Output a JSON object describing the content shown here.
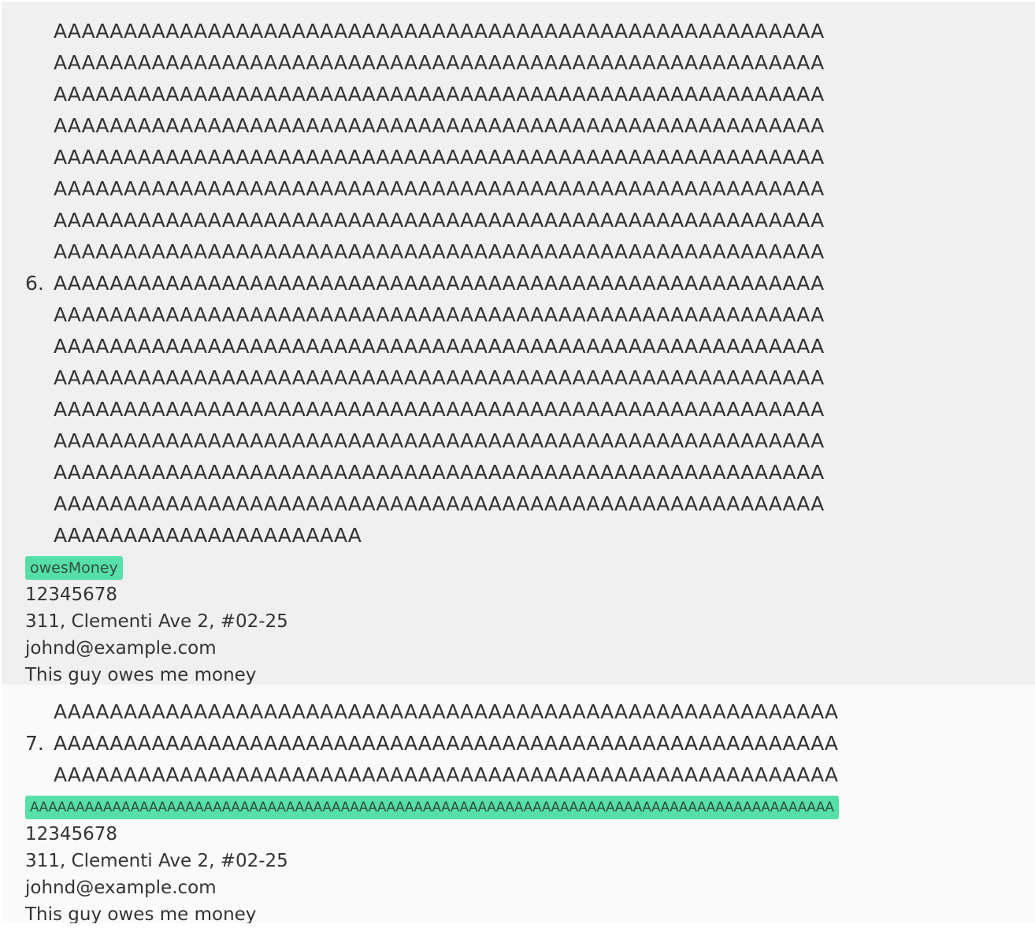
{
  "persons": [
    {
      "index": "6.",
      "name_lines": [
        "AAAAAAAAAAAAAAAAAAAAAAAAAAAAAAAAAAAAAAAAAAAAAAAAAAAAAAA",
        "AAAAAAAAAAAAAAAAAAAAAAAAAAAAAAAAAAAAAAAAAAAAAAAAAAAAAAA",
        "AAAAAAAAAAAAAAAAAAAAAAAAAAAAAAAAAAAAAAAAAAAAAAAAAAAAAAA",
        "AAAAAAAAAAAAAAAAAAAAAAAAAAAAAAAAAAAAAAAAAAAAAAAAAAAAAAA",
        "AAAAAAAAAAAAAAAAAAAAAAAAAAAAAAAAAAAAAAAAAAAAAAAAAAAAAAA",
        "AAAAAAAAAAAAAAAAAAAAAAAAAAAAAAAAAAAAAAAAAAAAAAAAAAAAAAA",
        "AAAAAAAAAAAAAAAAAAAAAAAAAAAAAAAAAAAAAAAAAAAAAAAAAAAAAAA",
        "AAAAAAAAAAAAAAAAAAAAAAAAAAAAAAAAAAAAAAAAAAAAAAAAAAAAAAA",
        "AAAAAAAAAAAAAAAAAAAAAAAAAAAAAAAAAAAAAAAAAAAAAAAAAAAAAAA",
        "AAAAAAAAAAAAAAAAAAAAAAAAAAAAAAAAAAAAAAAAAAAAAAAAAAAAAAA",
        "AAAAAAAAAAAAAAAAAAAAAAAAAAAAAAAAAAAAAAAAAAAAAAAAAAAAAAA",
        "AAAAAAAAAAAAAAAAAAAAAAAAAAAAAAAAAAAAAAAAAAAAAAAAAAAAAAA",
        "AAAAAAAAAAAAAAAAAAAAAAAAAAAAAAAAAAAAAAAAAAAAAAAAAAAAAAA",
        "AAAAAAAAAAAAAAAAAAAAAAAAAAAAAAAAAAAAAAAAAAAAAAAAAAAAAAA",
        "AAAAAAAAAAAAAAAAAAAAAAAAAAAAAAAAAAAAAAAAAAAAAAAAAAAAAAA",
        "AAAAAAAAAAAAAAAAAAAAAAAAAAAAAAAAAAAAAAAAAAAAAAAAAAAAAAA",
        "AAAAAAAAAAAAAAAAAAAAAA"
      ],
      "tags": [
        "owesMoney"
      ],
      "phone": "12345678",
      "address": "311, Clementi Ave 2, #02-25",
      "email": "johnd@example.com",
      "remark": "This guy owes me money"
    },
    {
      "index": "7.",
      "name_lines": [
        "AAAAAAAAAAAAAAAAAAAAAAAAAAAAAAAAAAAAAAAAAAAAAAAAAAAAAAAA",
        "AAAAAAAAAAAAAAAAAAAAAAAAAAAAAAAAAAAAAAAAAAAAAAAAAAAAAAAA",
        "AAAAAAAAAAAAAAAAAAAAAAAAAAAAAAAAAAAAAAAAAAAAAAAAAAAAAAAA"
      ],
      "tags": [
        "AAAAAAAAAAAAAAAAAAAAAAAAAAAAAAAAAAAAAAAAAAAAAAAAAAAAAAAAAAAAAAAAAAAAAAAAAAAAAAAAAAAAAAAA"
      ],
      "phone": "12345678",
      "address": "311, Clementi Ave 2, #02-25",
      "email": "johnd@example.com",
      "remark": "This guy owes me money"
    }
  ],
  "colors": {
    "tag_background": "#56dfa6",
    "card_odd": "#f0f0f0",
    "card_even": "#fafafa",
    "text": "#333333"
  }
}
